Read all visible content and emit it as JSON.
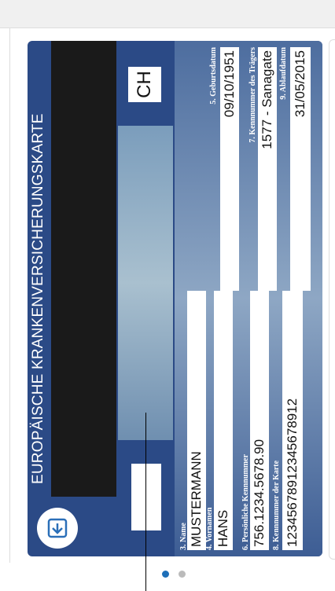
{
  "card": {
    "title": "EUROPÄISCHE KRANKENVERSICHERUNGSKARTE",
    "country": "CH",
    "fields": [
      {
        "label": "3. Name",
        "value": "MUSTERMANN"
      },
      {
        "label": "4. Vornamen",
        "value": "HANS"
      },
      {
        "label": "5. Geburtsdatum",
        "value": "09/10/1951"
      },
      {
        "label": "6. Persönliche Kennnummer",
        "value": "756.1234.5678.90"
      },
      {
        "label": "7. Kennnummer des Trägers",
        "value": "1577 - Sanagate"
      },
      {
        "label": "8. Kennnummer der Karte",
        "value": "12345678912345678912"
      },
      {
        "label": "9. Ablaufdatum",
        "value": "31/05/2015"
      }
    ]
  }
}
